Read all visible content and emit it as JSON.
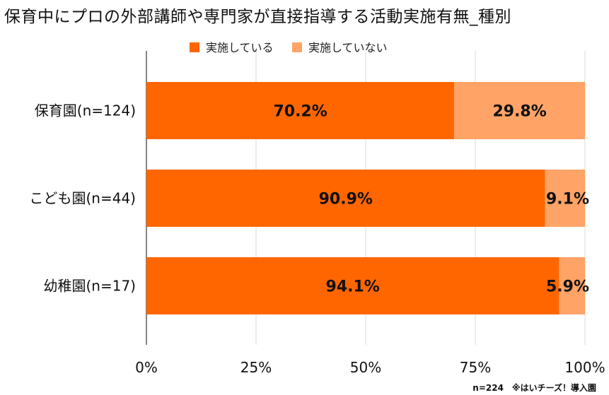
{
  "chart_data": {
    "type": "bar",
    "orientation": "horizontal",
    "stacked": true,
    "title": "保育中にプロの外部講師や専門家が直接指導する活動実施有無_種別",
    "categories": [
      "保育園(n=124)",
      "こども園(n=44)",
      "幼稚園(n=17)"
    ],
    "series": [
      {
        "name": "実施している",
        "values": [
          70.2,
          90.9,
          94.1
        ],
        "labels": [
          "70.2%",
          "90.9%",
          "94.1%"
        ],
        "color": "#ff6600"
      },
      {
        "name": "実施していない",
        "values": [
          29.8,
          9.1,
          5.9
        ],
        "labels": [
          "29.8%",
          "9.1%",
          "5.9%"
        ],
        "color": "#ffa366"
      }
    ],
    "xlim": [
      0,
      100
    ],
    "xticks": [
      0,
      25,
      50,
      75,
      100
    ],
    "xtick_labels": [
      "0%",
      "25%",
      "50%",
      "75%",
      "100%"
    ],
    "grid": true,
    "legend_position": "top"
  },
  "footnote": "n=224　※はいチーズ！導入園"
}
